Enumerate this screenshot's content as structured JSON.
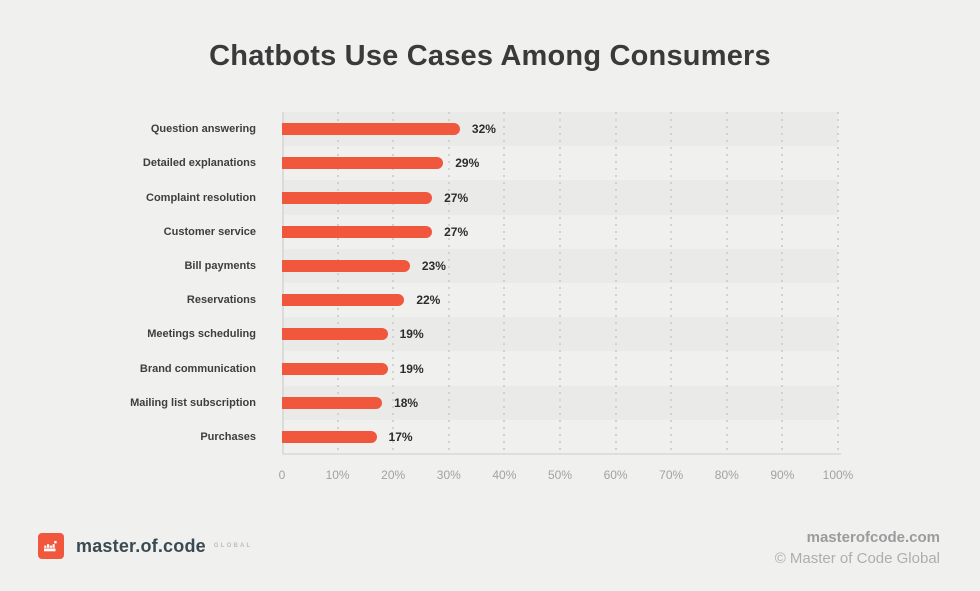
{
  "title": "Chatbots Use Cases Among Consumers",
  "chart_data": {
    "type": "bar",
    "orientation": "horizontal",
    "title": "Chatbots Use Cases Among Consumers",
    "categories": [
      "Question answering",
      "Detailed explanations",
      "Complaint resolution",
      "Customer service",
      "Bill payments",
      "Reservations",
      "Meetings scheduling",
      "Brand communication",
      "Mailing list subscription",
      "Purchases"
    ],
    "values": [
      32,
      29,
      27,
      27,
      23,
      22,
      19,
      19,
      18,
      17
    ],
    "value_labels": [
      "32%",
      "29%",
      "27%",
      "27%",
      "23%",
      "22%",
      "19%",
      "19%",
      "18%",
      "17%"
    ],
    "x_ticks": [
      "0",
      "10%",
      "20%",
      "30%",
      "40%",
      "50%",
      "60%",
      "70%",
      "80%",
      "90%",
      "100%"
    ],
    "xlim": [
      0,
      100
    ],
    "xlabel": "",
    "ylabel": "",
    "grid": "vertical-dashed",
    "legend": "none",
    "bar_color": "#F0573D",
    "stripe_dark": "#EAEAE9",
    "stripe_light": "#F0F0EF"
  },
  "colors": {
    "background": "#F0F0EF",
    "accent": "#F0573D",
    "title_text": "#3A3A3A",
    "category_text": "#3E3E3E",
    "tick_text": "#A2A2A1",
    "gridline": "#D1D1D0",
    "axis_line": "#DBDBDA"
  },
  "footer": {
    "logo_icon": "pixel-crown-icon",
    "logo_text": "master.of.code",
    "logo_suffix": "GLOBAL",
    "website": "masterofcode.com",
    "copyright": "© Master of Code Global"
  }
}
